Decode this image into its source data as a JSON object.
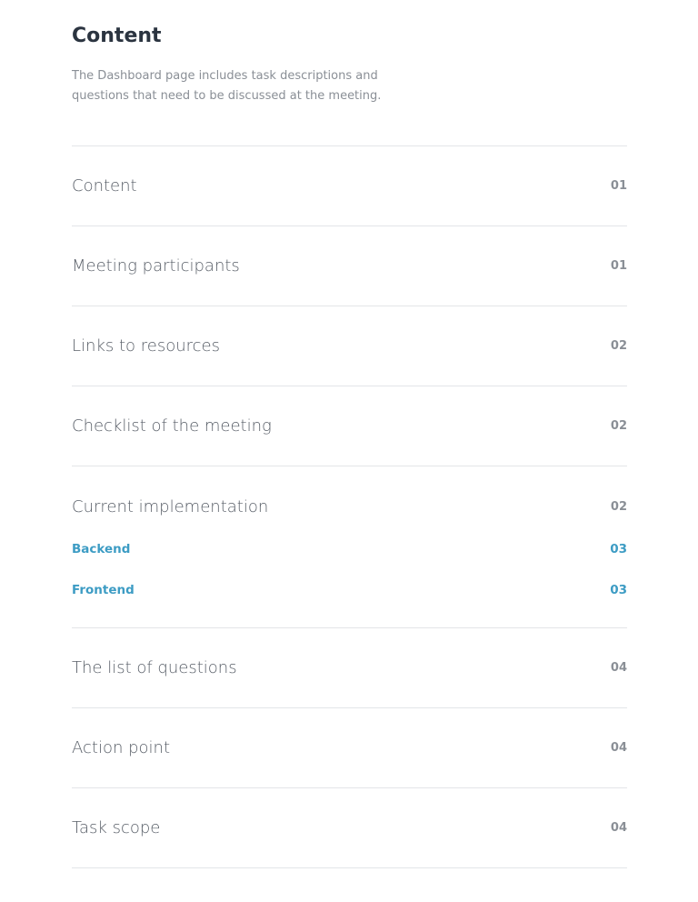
{
  "header": {
    "title": "Content",
    "description": "The Dashboard page includes task descriptions and questions that need to be discussed at the meeting."
  },
  "toc": [
    {
      "label": "Content",
      "page": "01"
    },
    {
      "label": "Meeting participants",
      "page": "01"
    },
    {
      "label": "Links to resources",
      "page": "02"
    },
    {
      "label": "Checklist of the meeting",
      "page": "02"
    },
    {
      "label": "Current implementation",
      "page": "02",
      "children": [
        {
          "label": "Backend",
          "page": "03"
        },
        {
          "label": "Frontend",
          "page": "03"
        }
      ]
    },
    {
      "label": "The list of questions",
      "page": "04"
    },
    {
      "label": "Action point",
      "page": "04"
    },
    {
      "label": "Task scope",
      "page": "04"
    }
  ],
  "colors": {
    "accent": "#3d9cc4",
    "title": "#2b3440",
    "text": "#5a6069",
    "muted": "#8a8f96",
    "divider": "#e3e5e8"
  }
}
